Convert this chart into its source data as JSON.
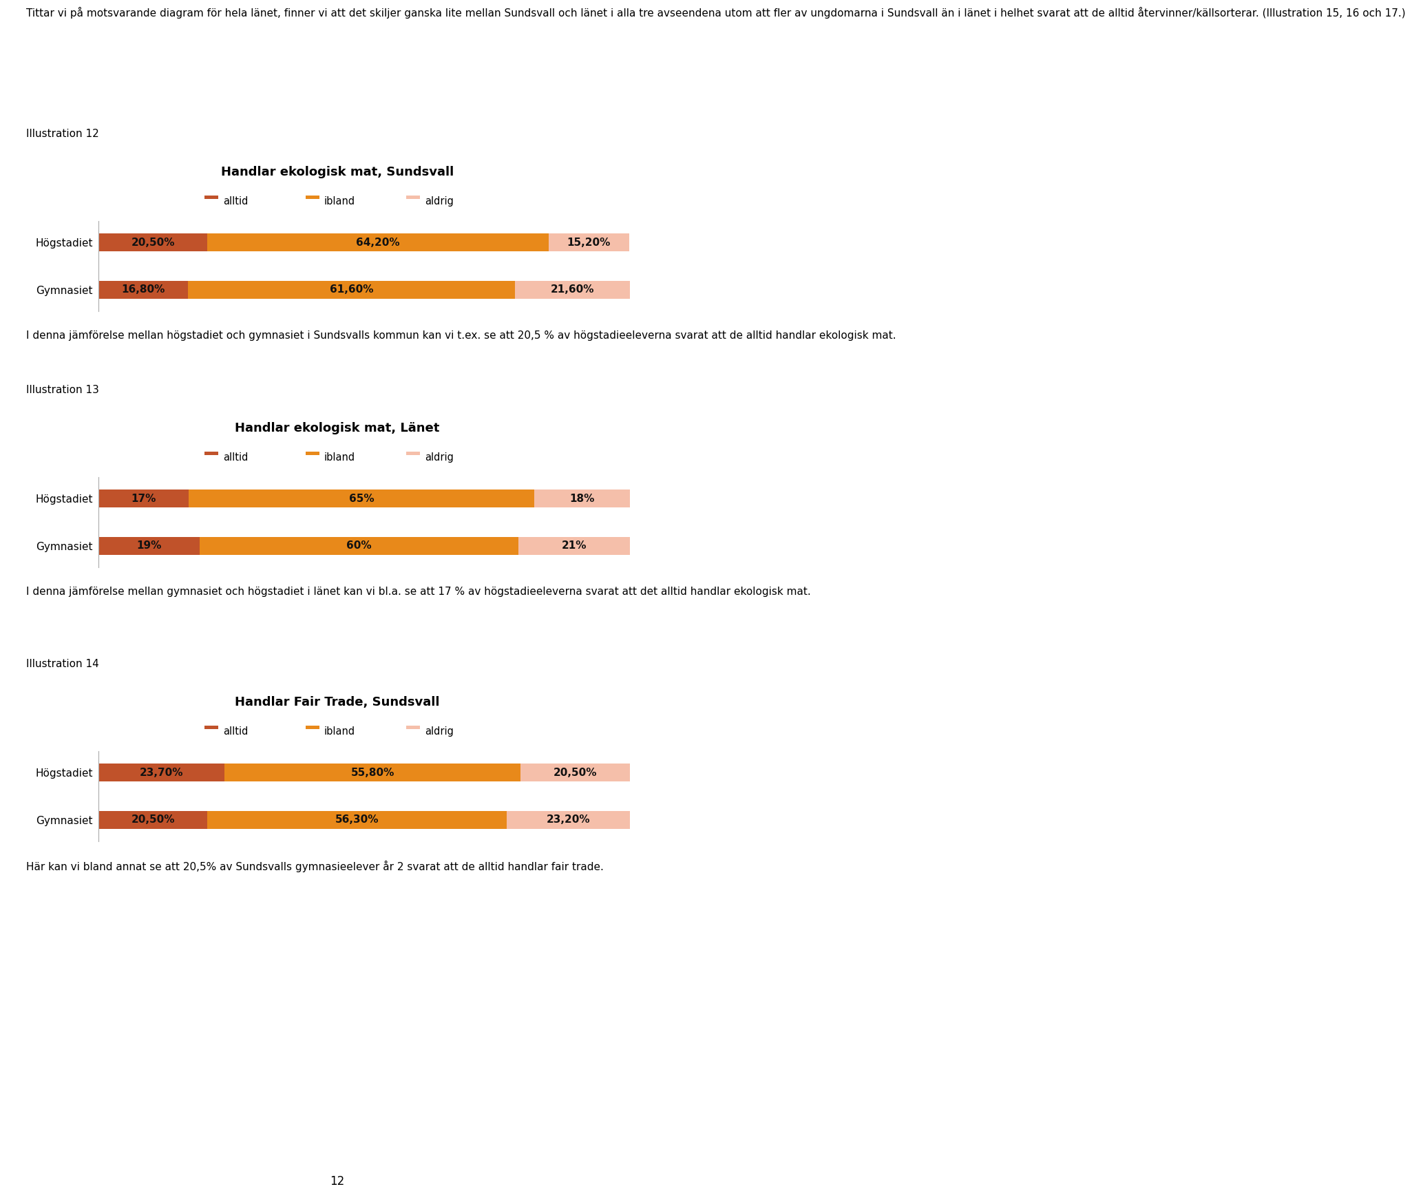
{
  "page_bg": "#ffffff",
  "intro_text": "Tittar vi på motsvarande diagram för hela länet, finner vi att det skiljer ganska lite mellan Sundsvall och länet i alla tre avseendena utom att fler av ungdomarna i Sundsvall än i länet i helhet svarat att de alltid återvinner/källsorterar. (Illustration 15, 16 och 17.)",
  "charts": [
    {
      "label": "Illustration 12",
      "title": "Handlar ekologisk mat, Sundsvall",
      "categories": [
        "Högstadiet",
        "Gymnasiet"
      ],
      "segments": [
        {
          "name": "alltid",
          "color": "#C0522A",
          "values": [
            20.5,
            16.8
          ]
        },
        {
          "name": "ibland",
          "color": "#E8891A",
          "values": [
            64.2,
            61.6
          ]
        },
        {
          "name": "aldrig",
          "color": "#F5BFAA",
          "values": [
            15.2,
            21.6
          ]
        }
      ],
      "bar_labels": [
        [
          "20,50%",
          "64,20%",
          "15,20%"
        ],
        [
          "16,80%",
          "61,60%",
          "21,60%"
        ]
      ],
      "caption": "I denna jämförelse mellan högstadiet och gymnasiet i Sundsvalls kommun kan vi t.ex. se att 20,5 % av högstadieeleverna svarat att de alltid handlar ekologisk mat."
    },
    {
      "label": "Illustration 13",
      "title": "Handlar ekologisk mat, Länet",
      "categories": [
        "Högstadiet",
        "Gymnasiet"
      ],
      "segments": [
        {
          "name": "alltid",
          "color": "#C0522A",
          "values": [
            17,
            19
          ]
        },
        {
          "name": "ibland",
          "color": "#E8891A",
          "values": [
            65,
            60
          ]
        },
        {
          "name": "aldrig",
          "color": "#F5BFAA",
          "values": [
            18,
            21
          ]
        }
      ],
      "bar_labels": [
        [
          "17%",
          "65%",
          "18%"
        ],
        [
          "19%",
          "60%",
          "21%"
        ]
      ],
      "caption": "I denna jämförelse mellan gymnasiet och högstadiet i länet kan vi bl.a. se att 17 % av högstadieeleverna svarat att det alltid handlar ekologisk mat."
    },
    {
      "label": "Illustration 14",
      "title": "Handlar Fair Trade, Sundsvall",
      "categories": [
        "Högstadiet",
        "Gymnasiet"
      ],
      "segments": [
        {
          "name": "alltid",
          "color": "#C0522A",
          "values": [
            23.7,
            20.5
          ]
        },
        {
          "name": "ibland",
          "color": "#E8891A",
          "values": [
            55.8,
            56.3
          ]
        },
        {
          "name": "aldrig",
          "color": "#F5BFAA",
          "values": [
            20.5,
            23.2
          ]
        }
      ],
      "bar_labels": [
        [
          "23,70%",
          "55,80%",
          "20,50%"
        ],
        [
          "20,50%",
          "56,30%",
          "23,20%"
        ]
      ],
      "caption": "Här kan vi bland annat se att 20,5% av Sundsvalls gymnasieelever år 2 svarat att de alltid handlar fair trade."
    }
  ],
  "footer_text": "12",
  "bar_height": 0.38,
  "title_fontsize": 13,
  "label_fontsize": 11,
  "bar_label_fontsize": 11,
  "legend_fontsize": 10.5,
  "caption_fontsize": 11,
  "illustration_fontsize": 11,
  "intro_fontsize": 11
}
